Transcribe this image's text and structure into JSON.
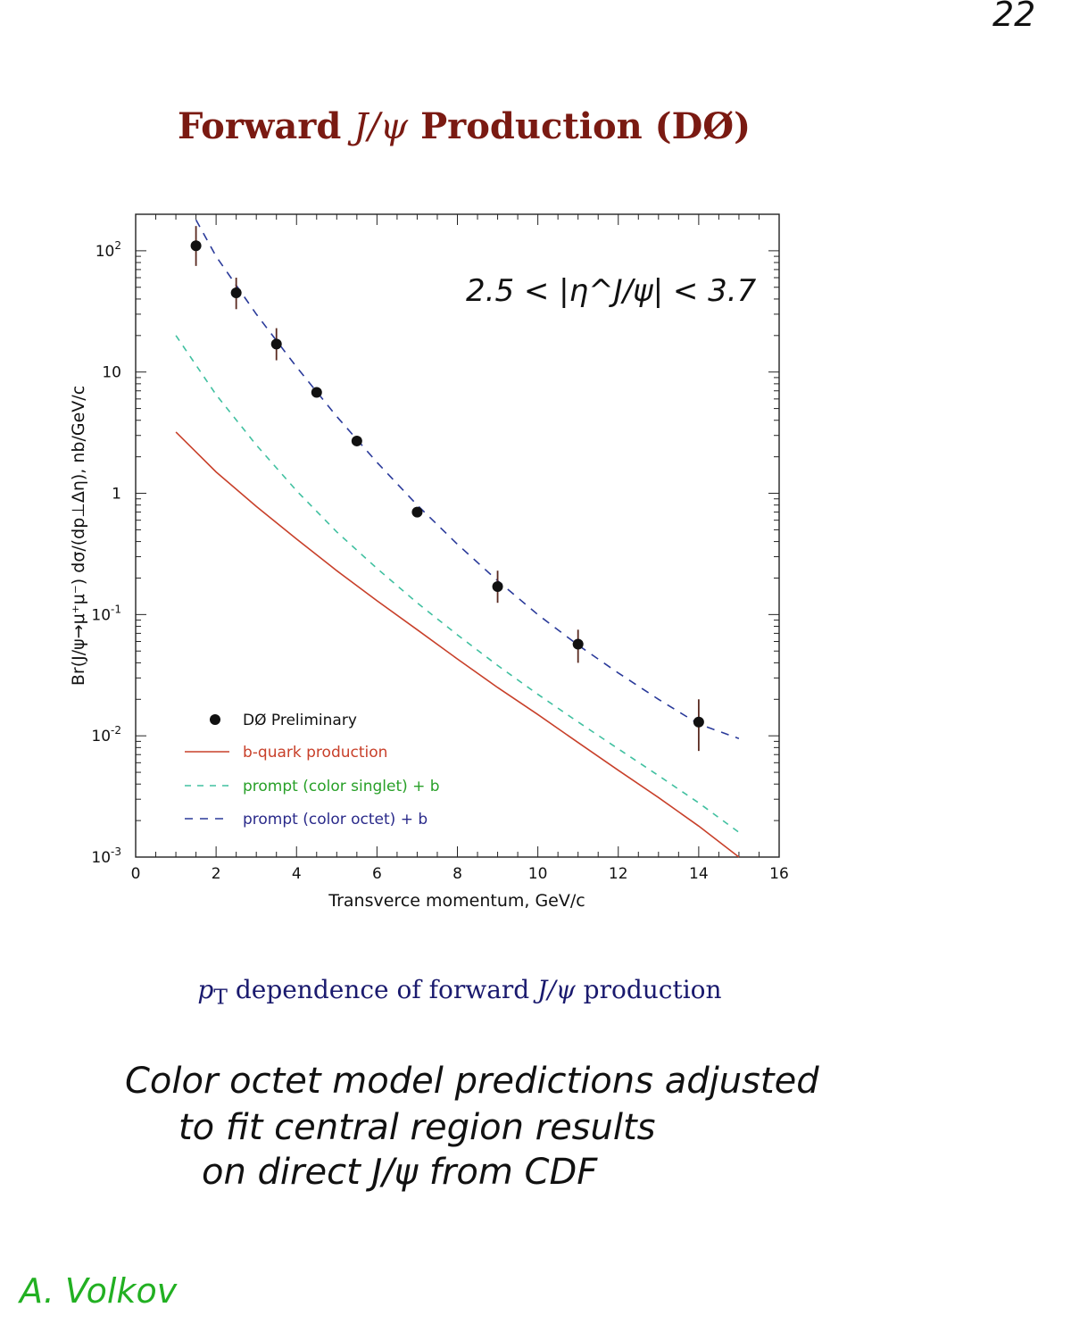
{
  "page_number": "22",
  "title": {
    "pre": "Forward ",
    "mid": "J/ψ",
    "post": " Production (DØ)"
  },
  "caption": {
    "pre": "p",
    "sub": "T",
    "mid": " dependence of forward ",
    "italic": "J/ψ",
    "post": " production"
  },
  "annotation": "2.5 < |η^J/ψ| < 3.7",
  "handwritten_notes": [
    "Color octet model predictions adjusted",
    "to fit central region results",
    "on direct J/ψ from CDF"
  ],
  "author": "A. Volkov",
  "colors": {
    "title": "#7a1a12",
    "caption": "#1a1a6e",
    "author": "#22b022",
    "data": "#111111",
    "b_quark": "#c8402a",
    "singlet": "#40c0a0",
    "octet": "#2a3a9a"
  },
  "chart_data": {
    "type": "scatter",
    "title": "",
    "xlabel": "Transverce momentum, GeV/c",
    "ylabel": "Br(J/ψ→μ⁺μ⁻) dσ/(dp⊥Δη), nb/GeV/c",
    "xlim": [
      0,
      16
    ],
    "ylim": [
      0.001,
      200
    ],
    "y_scale": "log",
    "x_ticks": [
      "0",
      "2",
      "4",
      "6",
      "8",
      "10",
      "12",
      "14",
      "16"
    ],
    "y_tick_labels": [
      {
        "value": 100,
        "base": "10",
        "exp": "2"
      },
      {
        "value": 10,
        "base": "10",
        "exp": ""
      },
      {
        "value": 1,
        "base": "1",
        "exp": ""
      },
      {
        "value": 0.1,
        "base": "10",
        "exp": "-1"
      },
      {
        "value": 0.01,
        "base": "10",
        "exp": "-2"
      },
      {
        "value": 0.001,
        "base": "10",
        "exp": "-3"
      }
    ],
    "legend_position": "bottom-left",
    "series": [
      {
        "name": "DØ Preliminary",
        "style": "points",
        "x": [
          1.5,
          2.5,
          3.5,
          4.5,
          5.5,
          7.0,
          9.0,
          11.0,
          14.0
        ],
        "y": [
          110,
          45,
          17,
          6.8,
          2.7,
          0.7,
          0.17,
          0.057,
          0.013
        ],
        "err_low": [
          75,
          33,
          12.5,
          6.2,
          2.5,
          0.65,
          0.125,
          0.04,
          0.0075
        ],
        "err_high": [
          160,
          60,
          23,
          7.4,
          2.9,
          0.75,
          0.23,
          0.075,
          0.02
        ]
      },
      {
        "name": "b-quark production",
        "style": "solid",
        "x": [
          1,
          2,
          3,
          4,
          5,
          6,
          7,
          8,
          9,
          10,
          11,
          12,
          13,
          14,
          15
        ],
        "y": [
          3.2,
          1.5,
          0.78,
          0.42,
          0.23,
          0.13,
          0.075,
          0.043,
          0.025,
          0.015,
          0.0088,
          0.0052,
          0.0031,
          0.0018,
          0.001
        ]
      },
      {
        "name": "prompt (color singlet) + b",
        "style": "dashed",
        "x": [
          1,
          2,
          3,
          4,
          5,
          6,
          7,
          8,
          9,
          10,
          11,
          12,
          13,
          14,
          15
        ],
        "y": [
          20,
          6.5,
          2.5,
          1.05,
          0.48,
          0.24,
          0.125,
          0.068,
          0.038,
          0.022,
          0.013,
          0.0078,
          0.0047,
          0.0028,
          0.0016
        ]
      },
      {
        "name": "prompt (color octet) + b",
        "style": "dashed",
        "x": [
          1.5,
          2,
          3,
          4,
          5,
          6,
          7,
          8,
          9,
          10,
          11,
          12,
          13,
          14,
          15
        ],
        "y": [
          180,
          90,
          30,
          11,
          4.3,
          1.8,
          0.8,
          0.38,
          0.19,
          0.1,
          0.056,
          0.033,
          0.02,
          0.0125,
          0.0095
        ]
      }
    ]
  }
}
